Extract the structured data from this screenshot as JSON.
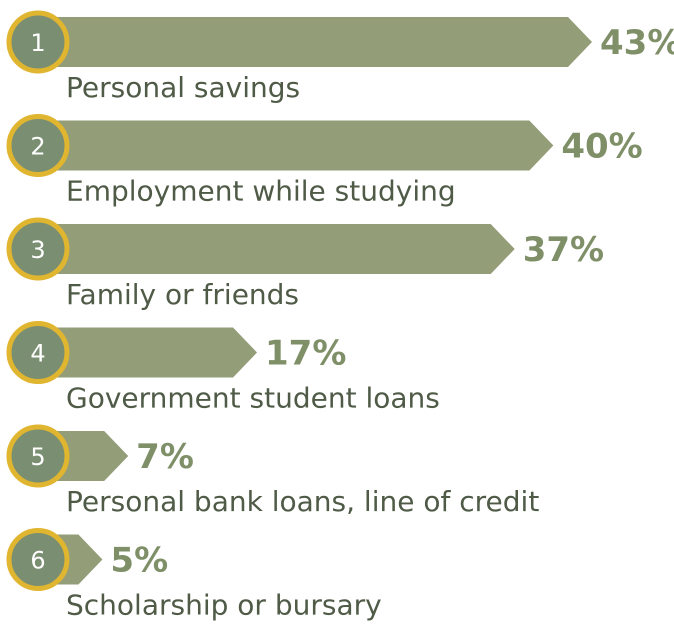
{
  "chart_data": {
    "type": "bar",
    "orientation": "horizontal",
    "categories": [
      "Personal savings",
      "Employment while studying",
      "Family or friends",
      "Government student loans",
      "Personal bank loans, line of credit",
      "Scholarship or bursary"
    ],
    "ranks": [
      "1",
      "2",
      "3",
      "4",
      "5",
      "6"
    ],
    "values": [
      43,
      40,
      37,
      17,
      7,
      5
    ],
    "value_labels": [
      "43%",
      "40%",
      "37%",
      "17%",
      "7%",
      "5%"
    ],
    "title": "",
    "xlabel": "",
    "ylabel": "",
    "xlim": [
      0,
      43
    ],
    "grid": false,
    "legend": "none"
  },
  "colors": {
    "bar": "#939d78",
    "circle_fill": "#7a8f72",
    "circle_ring": "#e0b530",
    "value_text": "#7f9068",
    "category_text": "#4f5b47"
  }
}
